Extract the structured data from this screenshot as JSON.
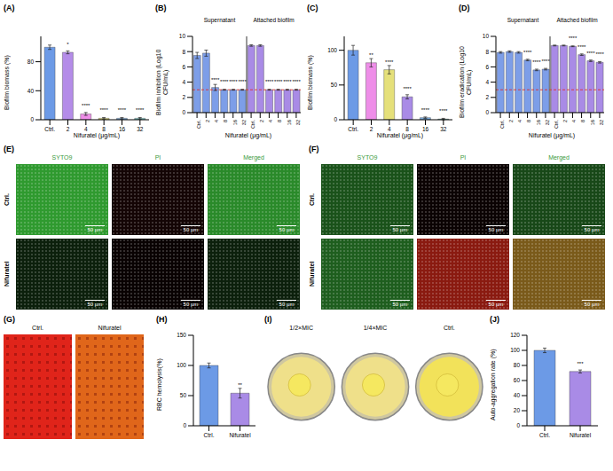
{
  "chart_data": [
    {
      "panel": "(A)",
      "type": "bar",
      "y_label": "Biofilm biomass (%)",
      "x_label": "Nifuratel (μg/mL)",
      "categories": [
        "Ctrl.",
        "2",
        "4",
        "8",
        "16",
        "32"
      ],
      "values": [
        100,
        93,
        8,
        2,
        2,
        2
      ],
      "errors": [
        3,
        2,
        2,
        1,
        1,
        1
      ],
      "significance": [
        null,
        "*",
        "****",
        "****",
        "****",
        "****"
      ],
      "colors": [
        "#6c9ae6",
        "#b48ce8",
        "#ee8ee8",
        "#e5e07a",
        "#7fb2e6",
        "#7fd3d0"
      ],
      "ylim": [
        0,
        115
      ],
      "yticks": [
        0,
        40,
        80
      ]
    },
    {
      "panel": "(B)",
      "type": "bar",
      "y_label": "Biofilm inhibition (Log10 CFU/mL)",
      "x_label": "Nifuratel (μg/mL)",
      "categories": [
        "Ctrl.",
        "2",
        "4",
        "8",
        "16",
        "32"
      ],
      "series": [
        {
          "name": "Supernatant",
          "color": "#7d9ee8",
          "values": [
            7.5,
            7.8,
            3.3,
            3.0,
            3.0,
            3.0
          ],
          "errors": [
            0.4,
            0.4,
            0.4,
            0.05,
            0.05,
            0.05
          ],
          "significance": [
            null,
            null,
            "****",
            "****",
            "****",
            "****"
          ]
        },
        {
          "name": "Attached biofilm",
          "color": "#a98be6",
          "values": [
            8.8,
            8.8,
            3.0,
            3.0,
            3.0,
            3.0
          ],
          "errors": [
            0.1,
            0.1,
            0.05,
            0.05,
            0.05,
            0.05
          ],
          "significance": [
            null,
            null,
            "****",
            "****",
            "****",
            "****"
          ]
        }
      ],
      "reference_line": 3,
      "ylim": [
        0,
        10
      ],
      "yticks": [
        0,
        2,
        4,
        6,
        8,
        10
      ]
    },
    {
      "panel": "(C)",
      "type": "bar",
      "y_label": "Biofilm biomass (%)",
      "x_label": "Nifuratel (μg/mL)",
      "categories": [
        "Ctrl.",
        "2",
        "4",
        "8",
        "16",
        "32"
      ],
      "values": [
        100,
        82,
        72,
        33,
        3,
        1
      ],
      "errors": [
        7,
        6,
        6,
        3,
        1,
        1
      ],
      "significance": [
        null,
        "**",
        "****",
        "****",
        "****",
        "****"
      ],
      "colors": [
        "#6c9ae6",
        "#ee8ee8",
        "#e5e07a",
        "#a98be6",
        "#7fb2e6",
        "#7fd3d0"
      ],
      "ylim": [
        0,
        120
      ],
      "yticks": [
        0,
        50,
        100
      ]
    },
    {
      "panel": "(D)",
      "type": "bar",
      "y_label": "Biofilm eradication (Log10 CFU/mL)",
      "x_label": "Nifuratel (μg/mL)",
      "categories": [
        "Ctrl.",
        "2",
        "4",
        "8",
        "16",
        "32"
      ],
      "series": [
        {
          "name": "Supernatant",
          "color": "#7d9ee8",
          "values": [
            7.9,
            8.0,
            7.9,
            6.9,
            5.6,
            5.7
          ],
          "errors": [
            0.1,
            0.1,
            0.1,
            0.1,
            0.1,
            0.1
          ],
          "significance": [
            null,
            null,
            null,
            "****",
            "****",
            "****"
          ]
        },
        {
          "name": "Attached biofilm",
          "color": "#a98be6",
          "values": [
            8.8,
            8.8,
            8.7,
            7.6,
            6.8,
            6.6
          ],
          "errors": [
            0.05,
            0.05,
            0.05,
            0.1,
            0.1,
            0.1
          ],
          "significance": [
            null,
            null,
            "****",
            "****",
            "****",
            "****"
          ]
        }
      ],
      "reference_line": 3,
      "ylim": [
        0,
        10
      ],
      "yticks": [
        0,
        2,
        4,
        6,
        8,
        10
      ]
    },
    {
      "panel": "(H)",
      "type": "bar",
      "y_label": "RBC hemolysis(%)",
      "categories": [
        "Ctrl.",
        "Nifuratel"
      ],
      "values": [
        100,
        54
      ],
      "errors": [
        4,
        8
      ],
      "significance": [
        null,
        "**"
      ],
      "colors": [
        "#6c9ae6",
        "#a98be6"
      ],
      "ylim": [
        0,
        150
      ],
      "yticks": [
        0,
        50,
        100,
        150
      ]
    },
    {
      "panel": "(J)",
      "type": "bar",
      "y_label": "Auto-aggregation rate (%)",
      "categories": [
        "Ctrl.",
        "Nifuratel"
      ],
      "values": [
        100,
        72
      ],
      "errors": [
        3,
        2
      ],
      "significance": [
        null,
        "***"
      ],
      "colors": [
        "#6c9ae6",
        "#a98be6"
      ],
      "ylim": [
        0,
        120
      ],
      "yticks": [
        0,
        20,
        40,
        60,
        80,
        100,
        120
      ]
    }
  ],
  "images": [
    {
      "panel": "(E)",
      "columns": [
        "SYTO9",
        "PI",
        "Merged"
      ],
      "rows": [
        "Ctrl.",
        "Nifuratel"
      ],
      "scale_bar": "50 μm",
      "colors": [
        [
          "#2f9a2f",
          "#140505",
          "#2a8a2a"
        ],
        [
          "#0c200c",
          "#090202",
          "#0c200c"
        ]
      ]
    },
    {
      "panel": "(F)",
      "columns": [
        "SYTO9",
        "PI",
        "Merged"
      ],
      "rows": [
        "Ctrl.",
        "Nifuratel"
      ],
      "scale_bar": "50 μm",
      "colors": [
        [
          "#1a521a",
          "#0b0303",
          "#184818"
        ],
        [
          "#1e5e1e",
          "#8a1a10",
          "#7a5a1a"
        ]
      ]
    },
    {
      "panel": "(G)",
      "labels": [
        "Ctrl.",
        "Nifuratel"
      ],
      "colors": [
        "#e0241a",
        "#e0661a"
      ]
    },
    {
      "panel": "(I)",
      "labels": [
        "1/2×MIC",
        "1/4×MIC",
        "Ctrl."
      ],
      "colors": [
        "#efe08a",
        "#efe08a",
        "#f2e25a"
      ]
    }
  ]
}
